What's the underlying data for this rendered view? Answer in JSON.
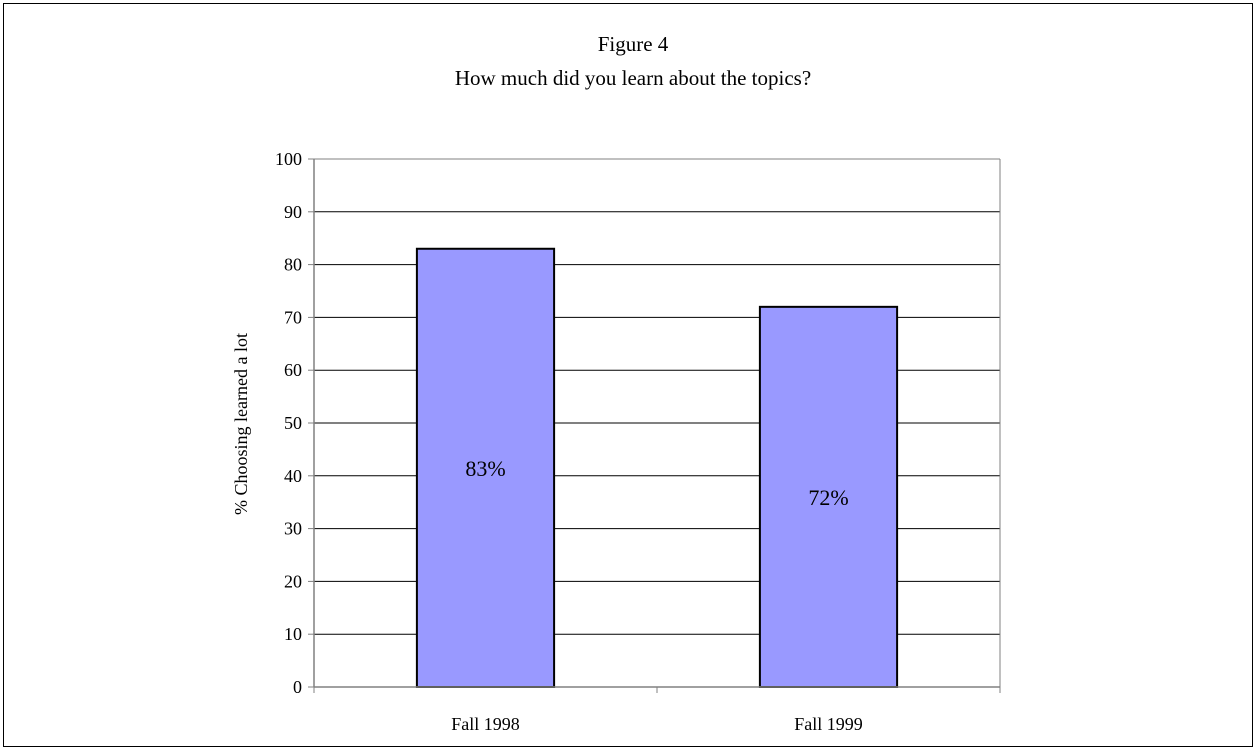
{
  "chart_data": {
    "type": "bar",
    "title": "Figure 4",
    "subtitle": "How much did you learn about the topics?",
    "xlabel": "",
    "ylabel": "% Choosing  learned a lot",
    "categories": [
      "Fall 1998",
      "Fall 1999"
    ],
    "values": [
      83,
      72
    ],
    "data_labels": [
      "83%",
      "72%"
    ],
    "ylim": [
      0,
      100
    ],
    "yticks": [
      0,
      10,
      20,
      30,
      40,
      50,
      60,
      70,
      80,
      90,
      100
    ],
    "grid": true,
    "legend": "none",
    "colors": {
      "bar_fill": "#9999ff",
      "bar_stroke": "#000000",
      "gridline": "#000000",
      "axis": "#808080",
      "frame": "#000000"
    }
  }
}
